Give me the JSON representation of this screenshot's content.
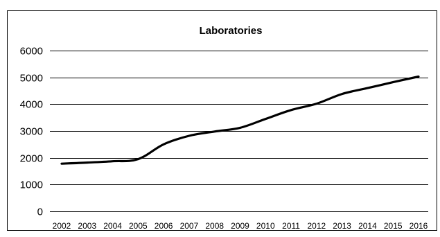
{
  "chart_data": {
    "type": "line",
    "title": "Laboratories",
    "xlabel": "",
    "ylabel": "",
    "categories": [
      "2002",
      "2003",
      "2004",
      "2005",
      "2006",
      "2007",
      "2008",
      "2009",
      "2010",
      "2011",
      "2012",
      "2013",
      "2014",
      "2015",
      "2016"
    ],
    "series": [
      {
        "values": [
          1780,
          1820,
          1870,
          1950,
          2500,
          2820,
          2980,
          3120,
          3450,
          3780,
          4020,
          4380,
          4600,
          4820,
          5030
        ],
        "color": "#000000"
      }
    ],
    "ylim": [
      0,
      6000
    ],
    "yticks": [
      0,
      1000,
      2000,
      3000,
      4000,
      5000,
      6000
    ],
    "grid": true,
    "legend": "none"
  }
}
